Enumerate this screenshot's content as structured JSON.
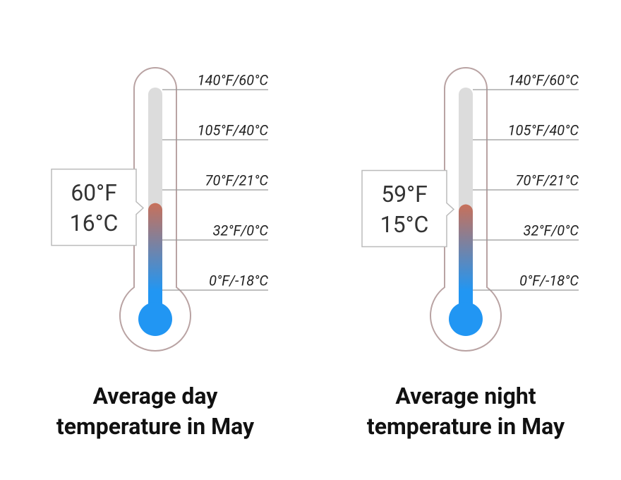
{
  "chart_data": [
    {
      "type": "thermometer",
      "title": "Average day temperature in May",
      "value": 60,
      "value_label": "60°F",
      "value_c": 16,
      "value_c_label": "16°C",
      "ylim": [
        0,
        140
      ],
      "yticks": [
        {
          "value": 140,
          "label": "140°F/60°C"
        },
        {
          "value": 105,
          "label": "105°F/40°C"
        },
        {
          "value": 70,
          "label": "70°F/21°C"
        },
        {
          "value": 32,
          "label": "32°F/0°C"
        },
        {
          "value": 0,
          "label": "0°F/-18°C"
        }
      ]
    },
    {
      "type": "thermometer",
      "title": "Average night temperature in May",
      "value": 59,
      "value_label": "59°F",
      "value_c": 15,
      "value_c_label": "15°C",
      "ylim": [
        0,
        140
      ],
      "yticks": [
        {
          "value": 140,
          "label": "140°F/60°C"
        },
        {
          "value": 105,
          "label": "105°F/40°C"
        },
        {
          "value": 70,
          "label": "70°F/21°C"
        },
        {
          "value": 32,
          "label": "32°F/0°C"
        },
        {
          "value": 0,
          "label": "0°F/-18°C"
        }
      ]
    }
  ]
}
